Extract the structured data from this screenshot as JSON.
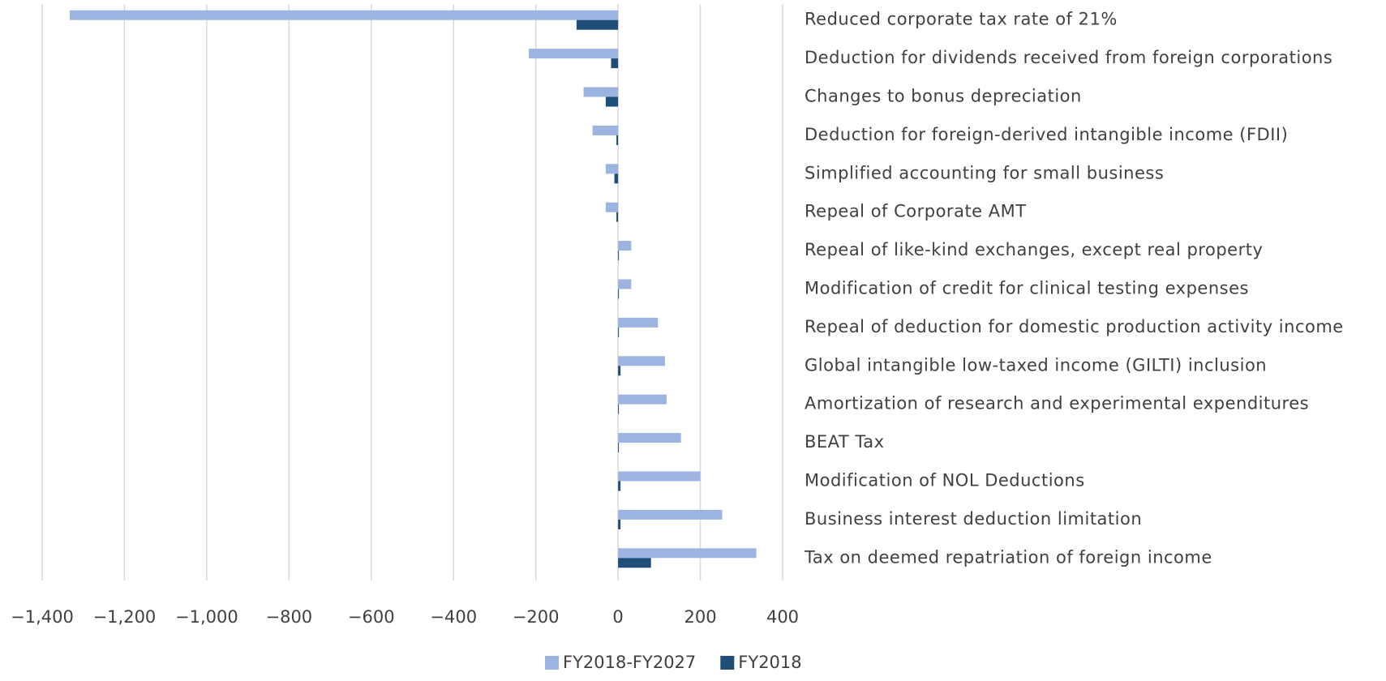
{
  "chart_data": {
    "type": "barh",
    "categories": [
      "Reduced corporate tax rate of 21%",
      "Deduction for dividends received from foreign corporations",
      "Changes to bonus depreciation",
      "Deduction for foreign-derived intangible income (FDII)",
      "Simplified accounting for small business",
      "Repeal of Corporate AMT",
      "Repeal of like-kind exchanges, except real property",
      "Modification of credit for clinical testing expenses",
      "Repeal of deduction for domestic production activity income",
      "Global intangible low-taxed income (GILTI) inclusion",
      "Amortization of research and experimental expenditures",
      "BEAT Tax",
      "Modification of NOL Deductions",
      "Business interest deduction limitation",
      "Tax on deemed repatriation of foreign income"
    ],
    "series": [
      {
        "name": "FY2018-FY2027",
        "color": "#9db4e0",
        "values": [
          -1333,
          -217,
          -84,
          -62,
          -30,
          -30,
          32,
          32,
          97,
          114,
          118,
          153,
          200,
          253,
          336
        ]
      },
      {
        "name": "FY2018",
        "color": "#1f4e79",
        "values": [
          -101,
          -17,
          -30,
          -4,
          -9,
          -4,
          1,
          1,
          1,
          6,
          1,
          1,
          6,
          6,
          80
        ]
      }
    ],
    "xlim": [
      -1400,
      400
    ],
    "xticks": [
      {
        "value": -1400,
        "label": "−1,400"
      },
      {
        "value": -1200,
        "label": "−1,200"
      },
      {
        "value": -1000,
        "label": "−1,000"
      },
      {
        "value": -800,
        "label": "−800"
      },
      {
        "value": -600,
        "label": "−600"
      },
      {
        "value": -400,
        "label": "−400"
      },
      {
        "value": -200,
        "label": "−200"
      },
      0,
      200,
      400
    ],
    "grid": true,
    "legend": "bottom"
  }
}
